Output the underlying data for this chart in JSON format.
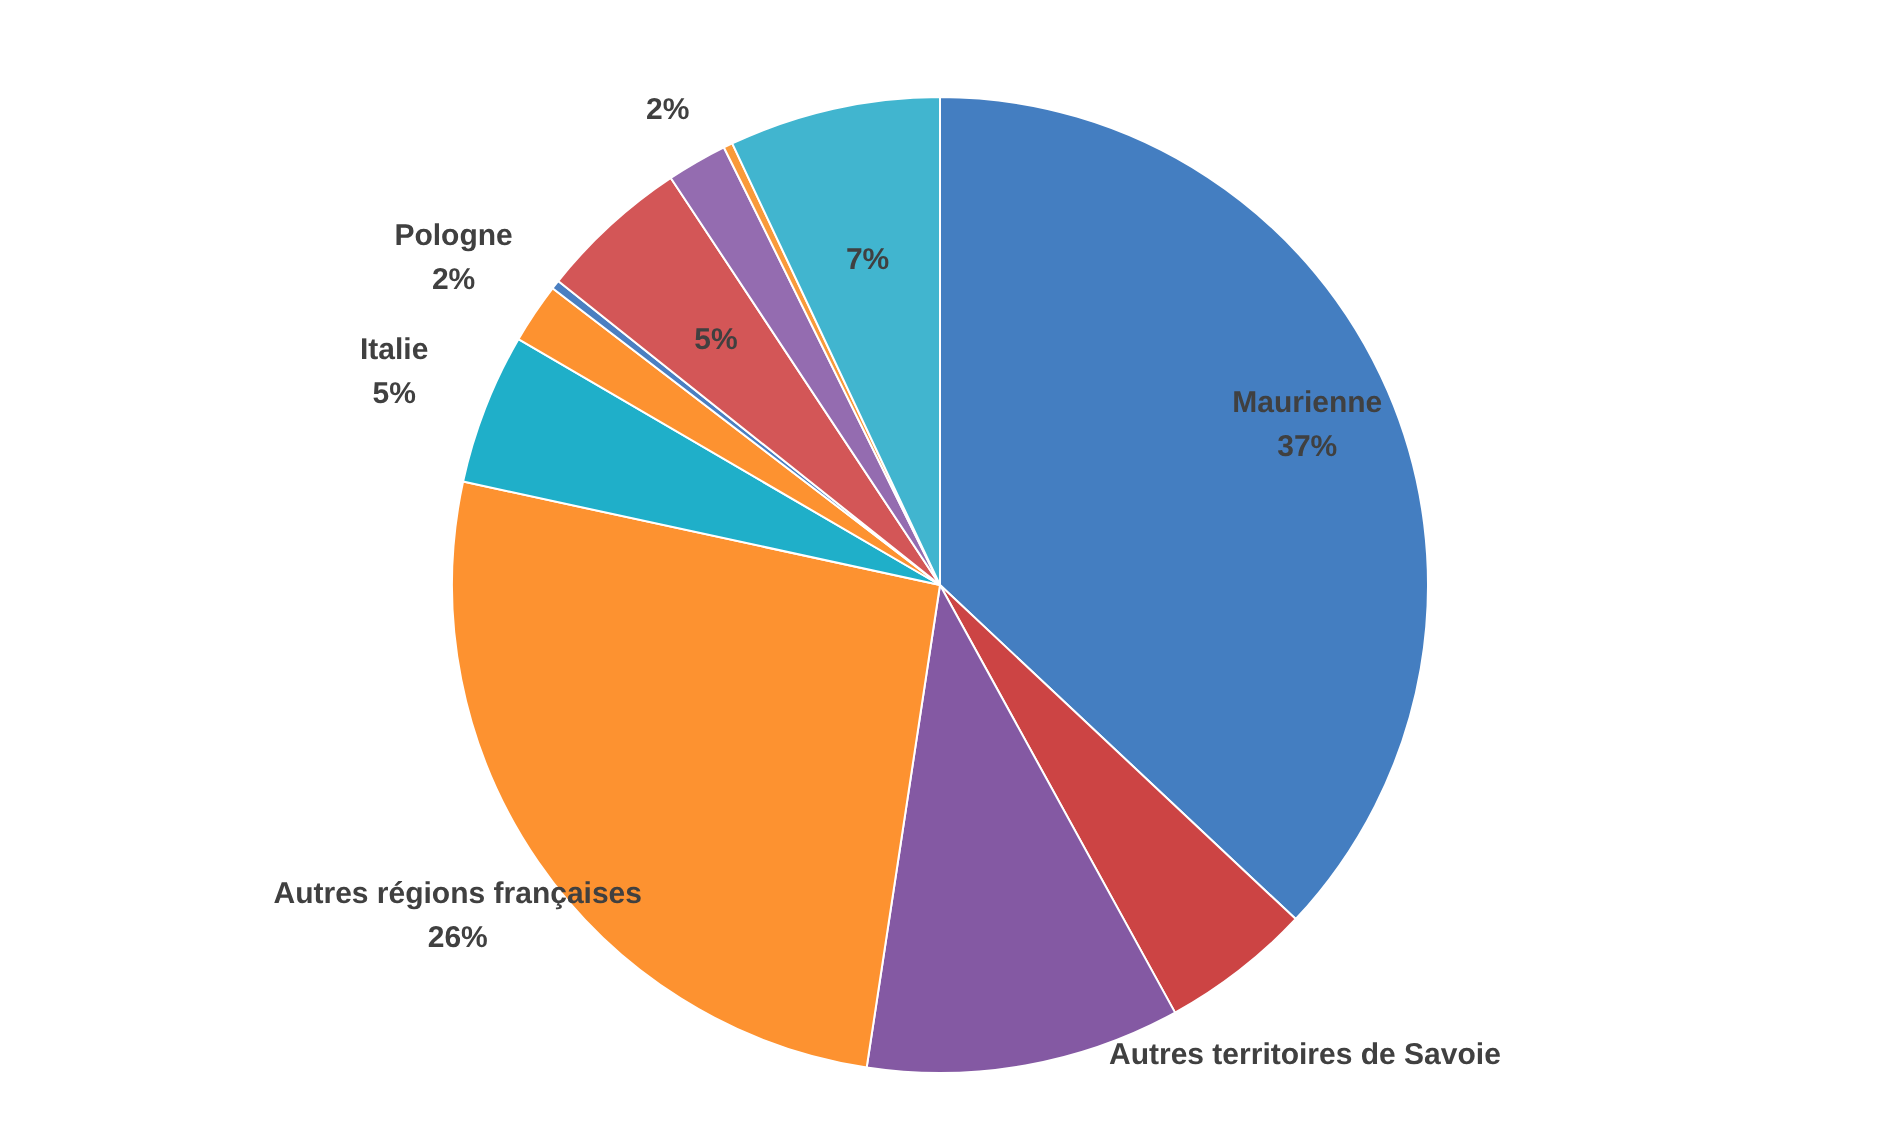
{
  "chart_data": {
    "type": "pie",
    "legend": false,
    "categories": [
      "Maurienne",
      "Autres territoires de Savoie",
      null,
      "Autres régions françaises",
      "Italie",
      "Pologne",
      null,
      null,
      null,
      null,
      null
    ],
    "values": [
      37,
      5,
      10.4,
      26,
      5,
      2,
      0.3,
      5,
      2,
      0.3,
      7
    ],
    "value_labels": [
      "37%",
      null,
      null,
      "26%",
      "5%",
      "2%",
      null,
      "5%",
      "2%",
      null,
      "7%"
    ],
    "colors": [
      "#447ec1",
      "#cc4444",
      "#8459a3",
      "#fd9230",
      "#1fafc9",
      "#fd9230",
      "#4a7fc1",
      "#d35657",
      "#946cb0",
      "#f99a3a",
      "#41b5cf"
    ]
  }
}
